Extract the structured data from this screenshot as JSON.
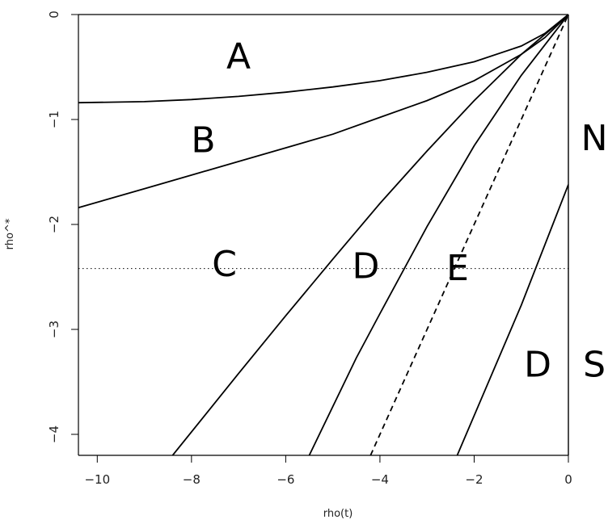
{
  "chart_data": {
    "type": "line",
    "title": "",
    "xlabel": "rho(t)",
    "ylabel": "rho^*",
    "xlim": [
      -10.4,
      0
    ],
    "ylim": [
      -4.2,
      0
    ],
    "grid": false,
    "x_ticks": [
      {
        "value": -10,
        "label": "−10"
      },
      {
        "value": -8,
        "label": "−8"
      },
      {
        "value": -6,
        "label": "−6"
      },
      {
        "value": -4,
        "label": "−4"
      },
      {
        "value": -2,
        "label": "−2"
      },
      {
        "value": 0,
        "label": "0"
      }
    ],
    "y_ticks": [
      {
        "value": 0,
        "label": "0"
      },
      {
        "value": -1,
        "label": "−1"
      },
      {
        "value": -2,
        "label": "−2"
      },
      {
        "value": -3,
        "label": "−3"
      },
      {
        "value": -4,
        "label": "−4"
      }
    ],
    "series": [
      {
        "style": "solid",
        "points": [
          [
            -10.4,
            -0.84
          ],
          [
            -9,
            -0.83
          ],
          [
            -8,
            -0.81
          ],
          [
            -7,
            -0.78
          ],
          [
            -6,
            -0.74
          ],
          [
            -5,
            -0.69
          ],
          [
            -4,
            -0.63
          ],
          [
            -3,
            -0.55
          ],
          [
            -2,
            -0.45
          ],
          [
            -1,
            -0.3
          ],
          [
            -0.5,
            -0.18
          ],
          [
            0,
            0
          ]
        ]
      },
      {
        "style": "solid",
        "points": [
          [
            -10.4,
            -1.84
          ],
          [
            -9,
            -1.66
          ],
          [
            -8,
            -1.53
          ],
          [
            -7,
            -1.4
          ],
          [
            -6,
            -1.27
          ],
          [
            -5,
            -1.14
          ],
          [
            -4,
            -0.98
          ],
          [
            -3,
            -0.82
          ],
          [
            -2,
            -0.63
          ],
          [
            -1,
            -0.38
          ],
          [
            -0.5,
            -0.22
          ],
          [
            0,
            0
          ]
        ]
      },
      {
        "style": "solid",
        "points": [
          [
            -8.4,
            -4.2
          ],
          [
            -7,
            -3.42
          ],
          [
            -6,
            -2.87
          ],
          [
            -5,
            -2.33
          ],
          [
            -4,
            -1.8
          ],
          [
            -3,
            -1.3
          ],
          [
            -2,
            -0.82
          ],
          [
            -1,
            -0.38
          ],
          [
            0,
            0
          ]
        ]
      },
      {
        "style": "solid",
        "points": [
          [
            -5.5,
            -4.2
          ],
          [
            -4.5,
            -3.27
          ],
          [
            -4,
            -2.85
          ],
          [
            -3,
            -2.02
          ],
          [
            -2,
            -1.25
          ],
          [
            -1,
            -0.58
          ],
          [
            0,
            0
          ]
        ]
      },
      {
        "style": "dashed",
        "points": [
          [
            -4.2,
            -4.2
          ],
          [
            0,
            0
          ]
        ]
      },
      {
        "style": "solid",
        "points": [
          [
            -2.36,
            -4.2
          ],
          [
            -1,
            -2.77
          ],
          [
            0,
            -1.62
          ]
        ]
      }
    ],
    "hlines": [
      {
        "y": -2.42,
        "style": "dotted"
      }
    ],
    "vlines": [
      {
        "x": 0,
        "style": "solid",
        "y_from": -4.2,
        "y_to": 0
      }
    ],
    "annotations": [
      {
        "text": "A",
        "x": -7.0,
        "y": -0.4
      },
      {
        "text": "B",
        "x": -7.75,
        "y": -1.2
      },
      {
        "text": "C",
        "x": -7.3,
        "y": -2.38
      },
      {
        "text": "D",
        "x": -4.3,
        "y": -2.4
      },
      {
        "text": "E",
        "x": -2.35,
        "y": -2.42
      },
      {
        "text": "N",
        "x": 0.55,
        "y": -1.18
      },
      {
        "text": "D",
        "x": -0.65,
        "y": -3.34
      },
      {
        "text": "S",
        "x": 0.55,
        "y": -3.34
      }
    ]
  }
}
